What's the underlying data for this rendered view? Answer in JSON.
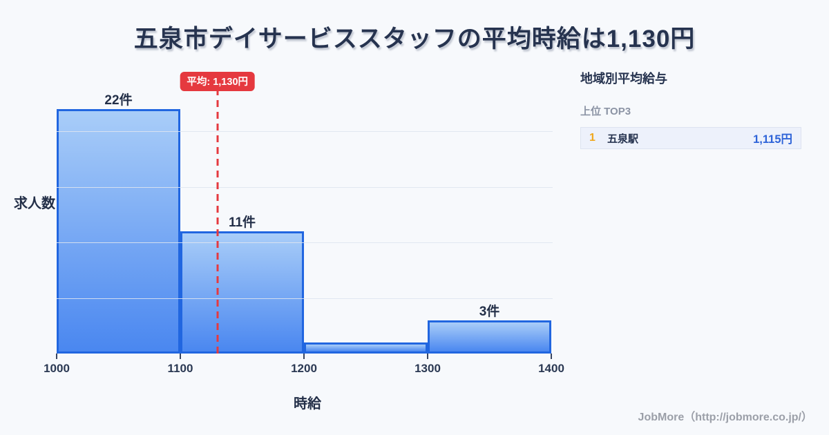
{
  "page": {
    "title": "五泉市デイサービススタッフの平均時給は1,130円",
    "footer_credit": "JobMore（http://jobmore.co.jp/）"
  },
  "chart_data": {
    "type": "bar",
    "subtype": "histogram",
    "title": "五泉市デイサービススタッフの平均時給は1,130円",
    "xlabel": "時給",
    "ylabel": "求人数",
    "xlim": [
      1000,
      1400
    ],
    "ylim": [
      0,
      22
    ],
    "x_ticks": [
      1000,
      1100,
      1200,
      1300,
      1400
    ],
    "grid": true,
    "y_grid_interval": 5,
    "bins": [
      {
        "range": [
          1000,
          1100
        ],
        "count": 22,
        "label": "22件"
      },
      {
        "range": [
          1100,
          1200
        ],
        "count": 11,
        "label": "11件"
      },
      {
        "range": [
          1200,
          1300
        ],
        "count": 1,
        "label": ""
      },
      {
        "range": [
          1300,
          1400
        ],
        "count": 3,
        "label": "3件"
      }
    ],
    "average": {
      "value": 1130,
      "label": "平均: 1,130円"
    }
  },
  "sidebar": {
    "title": "地域別平均給与",
    "subtitle": "上位 TOP3",
    "rows": [
      {
        "rank": "1",
        "name": "五泉駅",
        "value": "1,115円"
      }
    ]
  },
  "colors": {
    "accent_red": "#e5393f",
    "bar_border": "#2166e0",
    "bar_fill_top": "#a9cdf8",
    "bar_fill_bottom": "#4a87f0",
    "rank_gold": "#f0a71c",
    "value_blue": "#2d63d8"
  }
}
